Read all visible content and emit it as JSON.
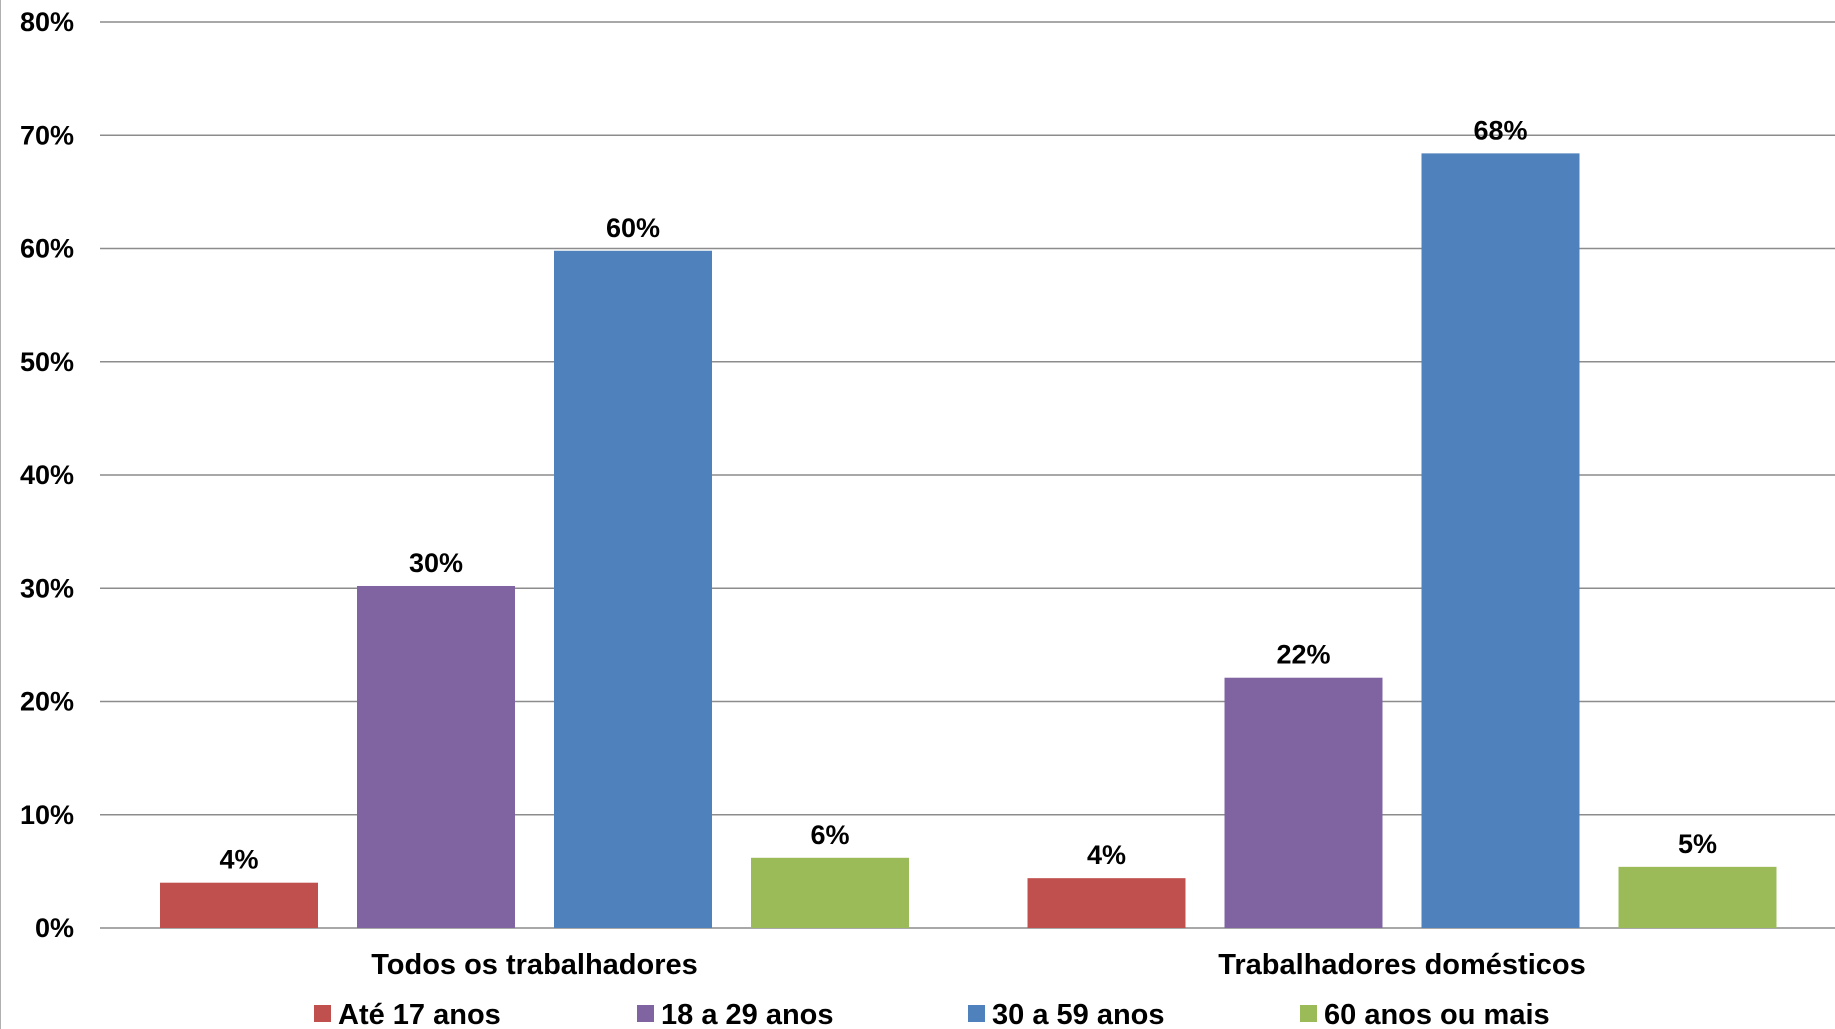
{
  "chart_data": {
    "type": "bar",
    "categories": [
      "Todos os trabalhadores",
      "Trabalhadores domésticos"
    ],
    "series": [
      {
        "name": "Até 17 anos",
        "values": [
          4,
          4.4
        ],
        "labels": [
          "4%",
          "4%"
        ],
        "color": "#c0504d"
      },
      {
        "name": "18 a 29 anos",
        "values": [
          30.2,
          22.1
        ],
        "labels": [
          "30%",
          "22%"
        ],
        "color": "#8064a2"
      },
      {
        "name": "30 a 59 anos",
        "values": [
          59.8,
          68.4
        ],
        "labels": [
          "60%",
          "68%"
        ],
        "color": "#4f81bd"
      },
      {
        "name": "60 anos ou mais",
        "values": [
          6.2,
          5.4
        ],
        "labels": [
          "6%",
          "5%"
        ],
        "color": "#9bbb59"
      }
    ],
    "ylim": [
      0,
      80
    ],
    "yticks": [
      0,
      10,
      20,
      30,
      40,
      50,
      60,
      70,
      80
    ],
    "ytick_labels": [
      "0%",
      "10%",
      "20%",
      "30%",
      "40%",
      "50%",
      "60%",
      "70%",
      "80%"
    ],
    "grid": true,
    "legend_position": "bottom",
    "gridline_color": "#8c8c8c"
  }
}
